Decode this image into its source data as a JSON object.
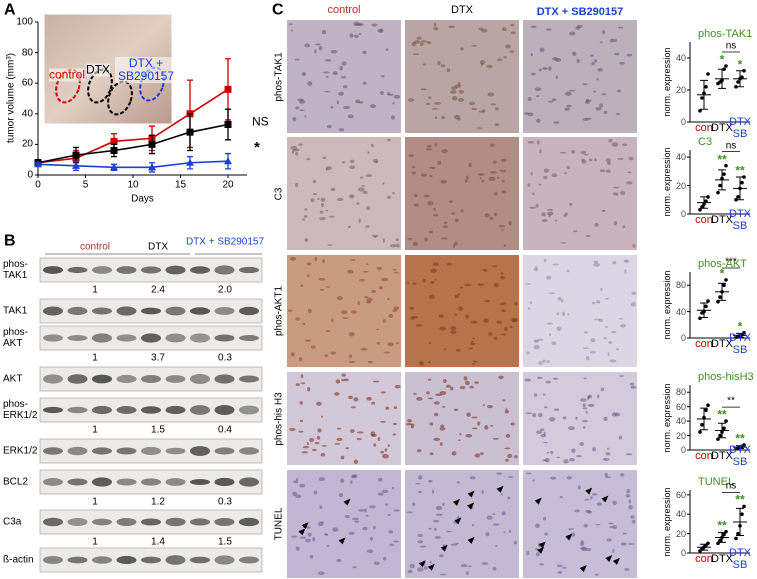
{
  "panel_labels": [
    "A",
    "B",
    "C"
  ],
  "chart_data": [
    {
      "type": "line",
      "y_label": "tumor volume (mm³)",
      "x_label": "Days",
      "x": [
        0,
        4,
        8,
        12,
        16,
        20
      ],
      "xlim": [
        0,
        22
      ],
      "xticks": [
        0,
        5,
        10,
        15,
        20
      ],
      "ylim": [
        0,
        100
      ],
      "yticks": [
        0,
        20,
        40,
        60,
        80,
        100
      ],
      "series": [
        {
          "name": "control",
          "color": "#cc0000",
          "marker": "square",
          "values": [
            8,
            11,
            22,
            24,
            40,
            56
          ],
          "errors": [
            2,
            5,
            5,
            8,
            22,
            20
          ]
        },
        {
          "name": "DTX",
          "color": "#000000",
          "marker": "square",
          "values": [
            8,
            13,
            16,
            20,
            28,
            33
          ],
          "errors": [
            2,
            5,
            4,
            6,
            12,
            10
          ]
        },
        {
          "name": "DTX + SB290157",
          "color": "#1a3fd6",
          "marker": "triangle",
          "values": [
            7,
            6,
            5,
            5,
            8,
            9
          ],
          "errors": [
            1,
            3,
            2,
            3,
            4,
            5
          ]
        }
      ],
      "annotations": [
        "NS",
        "*"
      ]
    },
    {
      "type": "strip",
      "title": "phos-TAK1",
      "title_color": "#3f8f1f",
      "y_label": "norm. expression",
      "categories": [
        "con",
        "DTX",
        "DTX SB"
      ],
      "category_colors": [
        "#cc0000",
        "#000000",
        "#1a3fd6"
      ],
      "points": [
        [
          7,
          15,
          18,
          22,
          30
        ],
        [
          24,
          25,
          26,
          33,
          35
        ],
        [
          22,
          25,
          27,
          28,
          32
        ]
      ],
      "means": [
        17,
        27,
        27
      ],
      "errors": [
        9,
        6,
        5
      ],
      "ylim": [
        0,
        50
      ],
      "yticks": [
        0,
        20,
        40
      ],
      "group_marks": [
        null,
        "*",
        "*"
      ],
      "comparison": "ns"
    },
    {
      "type": "strip",
      "title": "C3",
      "title_color": "#3f8f1f",
      "y_label": "norm. expression",
      "categories": [
        "con",
        "DTX",
        "DTX SB"
      ],
      "category_colors": [
        "#cc0000",
        "#000000",
        "#1a3fd6"
      ],
      "points": [
        [
          3,
          5,
          7,
          9,
          12
        ],
        [
          15,
          20,
          25,
          28,
          34
        ],
        [
          10,
          12,
          18,
          22,
          26
        ]
      ],
      "means": [
        8,
        24,
        18
      ],
      "errors": [
        4,
        7,
        8
      ],
      "ylim": [
        0,
        45
      ],
      "yticks": [
        0,
        20,
        40
      ],
      "group_marks": [
        null,
        "**",
        "**"
      ],
      "comparison": "ns"
    },
    {
      "type": "strip",
      "title": "phos-AKT",
      "title_color": "#3f8f1f",
      "y_label": "norm. expression",
      "categories": [
        "con",
        "DTX",
        "DTX SB"
      ],
      "category_colors": [
        "#cc0000",
        "#000000",
        "#1a3fd6"
      ],
      "points": [
        [
          30,
          38,
          40,
          48,
          56
        ],
        [
          55,
          62,
          70,
          80,
          88
        ],
        [
          1,
          2,
          3,
          5,
          8
        ]
      ],
      "means": [
        42,
        70,
        4
      ],
      "errors": [
        11,
        13,
        3
      ],
      "ylim": [
        0,
        100
      ],
      "yticks": [
        0,
        40,
        80
      ],
      "group_marks": [
        null,
        "*",
        "*"
      ],
      "comparison": "***"
    },
    {
      "type": "strip",
      "title": "phos-hisH3",
      "title_color": "#3f8f1f",
      "y_label": "norm. expression",
      "categories": [
        "con",
        "DTX",
        "DTX SB"
      ],
      "category_colors": [
        "#cc0000",
        "#000000",
        "#1a3fd6"
      ],
      "points": [
        [
          25,
          35,
          45,
          55,
          62
        ],
        [
          15,
          20,
          25,
          30,
          40
        ],
        [
          2,
          3,
          4,
          5,
          7
        ]
      ],
      "means": [
        43,
        27,
        4
      ],
      "errors": [
        15,
        10,
        2
      ],
      "ylim": [
        0,
        90
      ],
      "yticks": [
        0,
        20,
        40,
        60,
        80
      ],
      "group_marks": [
        null,
        "**",
        "**"
      ],
      "comparison": "**"
    },
    {
      "type": "strip",
      "title": "TUNEL",
      "title_color": "#3f8f1f",
      "y_label": "norm. expression",
      "categories": [
        "con",
        "DTX",
        "DTX SB"
      ],
      "category_colors": [
        "#cc0000",
        "#000000",
        "#1a3fd6"
      ],
      "points": [
        [
          2,
          4,
          6,
          8,
          10
        ],
        [
          10,
          13,
          16,
          19,
          22
        ],
        [
          15,
          20,
          28,
          40,
          48
        ]
      ],
      "means": [
        6,
        16,
        32
      ],
      "errors": [
        3,
        5,
        14
      ],
      "ylim": [
        0,
        65
      ],
      "yticks": [
        0,
        20,
        40,
        60
      ],
      "group_marks": [
        null,
        "**",
        "**"
      ],
      "comparison": "ns"
    }
  ],
  "blot": {
    "headers": [
      "control",
      "DTX",
      "DTX + SB290157"
    ],
    "rows": [
      {
        "label": "phos-TAK1",
        "quant": [
          "1",
          "2.4",
          "2.0"
        ]
      },
      {
        "label": "TAK1"
      },
      {
        "label": "phos-AKT",
        "quant": [
          "1",
          "3.7",
          "0.3"
        ]
      },
      {
        "label": "AKT"
      },
      {
        "label": "phos-ERK1/2",
        "quant": [
          "1",
          "1.5",
          "0.4"
        ]
      },
      {
        "label": "ERK1/2"
      },
      {
        "label": "BCL2",
        "quant": [
          "1",
          "1.2",
          "0.3"
        ]
      },
      {
        "label": "C3a",
        "quant": [
          "1",
          "1.4",
          "1.5"
        ]
      },
      {
        "label": "ß-actin"
      }
    ]
  },
  "micrographs": {
    "columns": [
      "control",
      "DTX",
      "DTX + SB290157"
    ],
    "rows": [
      "phos-TAK1",
      "C3",
      "phos-AKT1",
      "phos-his H3",
      "TUNEL"
    ]
  }
}
